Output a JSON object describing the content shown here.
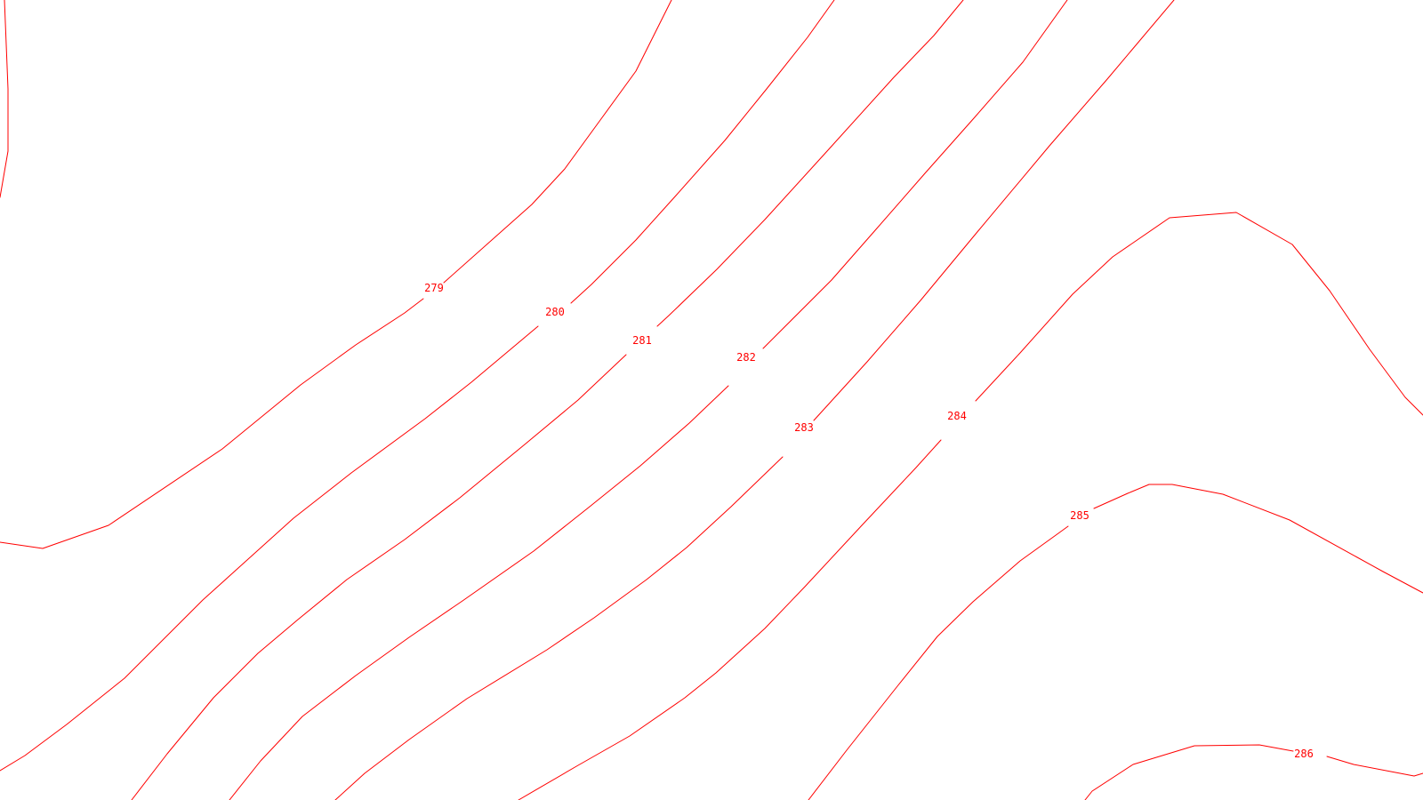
{
  "map": {
    "line_color": "#ff0000",
    "background_color": "#ffffff",
    "contours": [
      {
        "elevation": "279"
      },
      {
        "elevation": "280"
      },
      {
        "elevation": "281"
      },
      {
        "elevation": "282"
      },
      {
        "elevation": "283"
      },
      {
        "elevation": "284"
      },
      {
        "elevation": "285"
      },
      {
        "elevation": "286"
      }
    ]
  }
}
